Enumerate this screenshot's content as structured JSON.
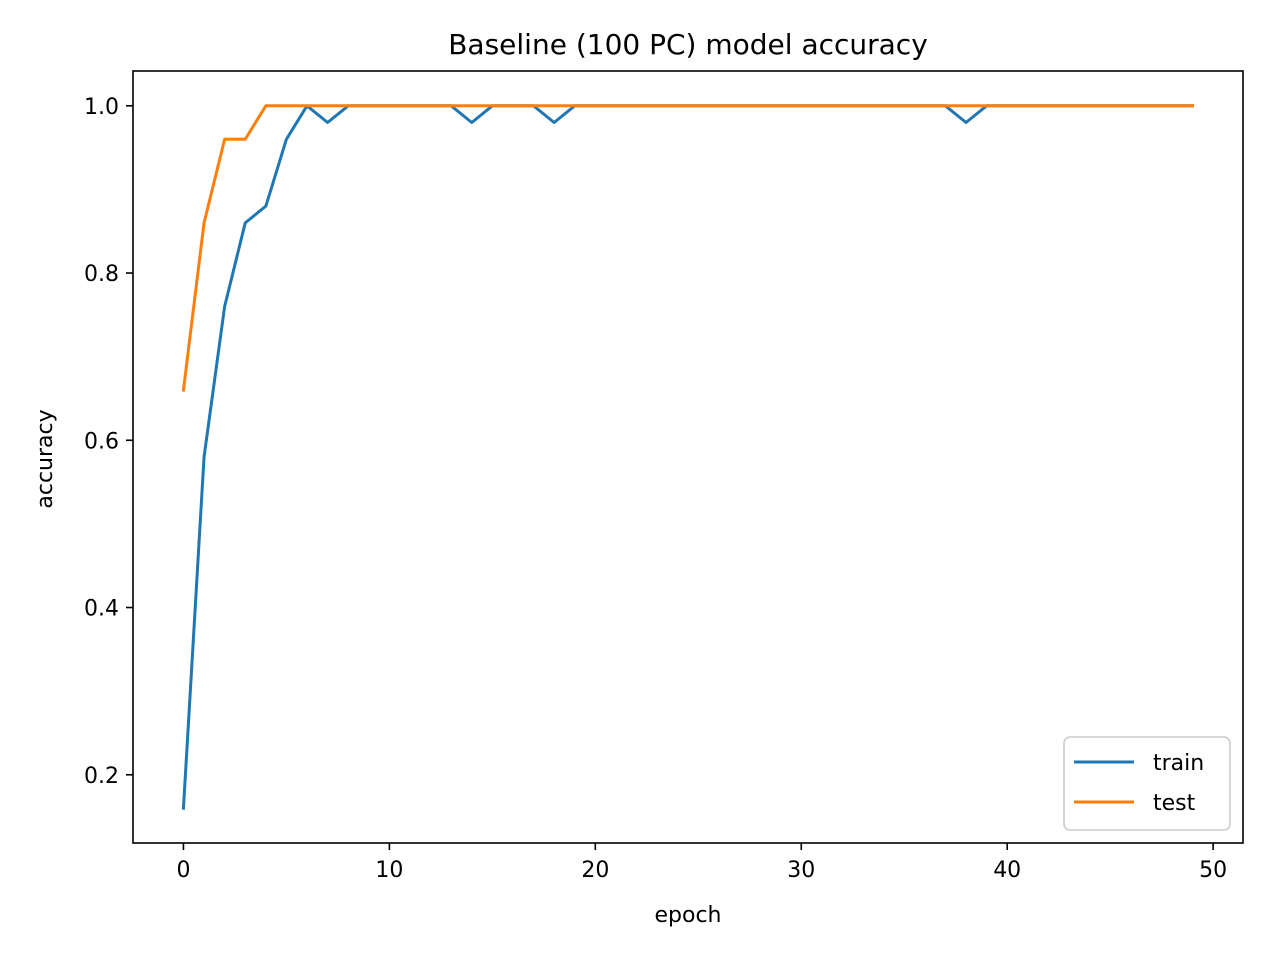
{
  "chart_data": {
    "type": "line",
    "title": "Baseline (100 PC) model accuracy",
    "xlabel": "epoch",
    "ylabel": "accuracy",
    "xlim": [
      -2.45,
      51.45
    ],
    "ylim": [
      0.1184,
      1.0416
    ],
    "x_ticks": [
      0,
      10,
      20,
      30,
      40,
      50
    ],
    "y_ticks": [
      0.2,
      0.4,
      0.6,
      0.8,
      1.0
    ],
    "x_tick_labels": [
      "0",
      "10",
      "20",
      "30",
      "40",
      "50"
    ],
    "y_tick_labels": [
      "0.2",
      "0.4",
      "0.6",
      "0.8",
      "1.0"
    ],
    "grid": false,
    "legend_position": "lower right",
    "x": [
      0,
      1,
      2,
      3,
      4,
      5,
      6,
      7,
      8,
      9,
      10,
      11,
      12,
      13,
      14,
      15,
      16,
      17,
      18,
      19,
      20,
      21,
      22,
      23,
      24,
      25,
      26,
      27,
      28,
      29,
      30,
      31,
      32,
      33,
      34,
      35,
      36,
      37,
      38,
      39,
      40,
      41,
      42,
      43,
      44,
      45,
      46,
      47,
      48,
      49
    ],
    "series": [
      {
        "name": "train",
        "color": "#1f77b4",
        "values": [
          0.16,
          0.58,
          0.76,
          0.86,
          0.88,
          0.96,
          1.0,
          0.98,
          1.0,
          1.0,
          1.0,
          1.0,
          1.0,
          1.0,
          0.98,
          1.0,
          1.0,
          1.0,
          0.98,
          1.0,
          1.0,
          1.0,
          1.0,
          1.0,
          1.0,
          1.0,
          1.0,
          1.0,
          1.0,
          1.0,
          1.0,
          1.0,
          1.0,
          1.0,
          1.0,
          1.0,
          1.0,
          1.0,
          0.98,
          1.0,
          1.0,
          1.0,
          1.0,
          1.0,
          1.0,
          1.0,
          1.0,
          1.0,
          1.0,
          1.0
        ]
      },
      {
        "name": "test",
        "color": "#ff7f0e",
        "values": [
          0.66,
          0.86,
          0.96,
          0.96,
          1.0,
          1.0,
          1.0,
          1.0,
          1.0,
          1.0,
          1.0,
          1.0,
          1.0,
          1.0,
          1.0,
          1.0,
          1.0,
          1.0,
          1.0,
          1.0,
          1.0,
          1.0,
          1.0,
          1.0,
          1.0,
          1.0,
          1.0,
          1.0,
          1.0,
          1.0,
          1.0,
          1.0,
          1.0,
          1.0,
          1.0,
          1.0,
          1.0,
          1.0,
          1.0,
          1.0,
          1.0,
          1.0,
          1.0,
          1.0,
          1.0,
          1.0,
          1.0,
          1.0,
          1.0,
          1.0
        ]
      }
    ]
  }
}
